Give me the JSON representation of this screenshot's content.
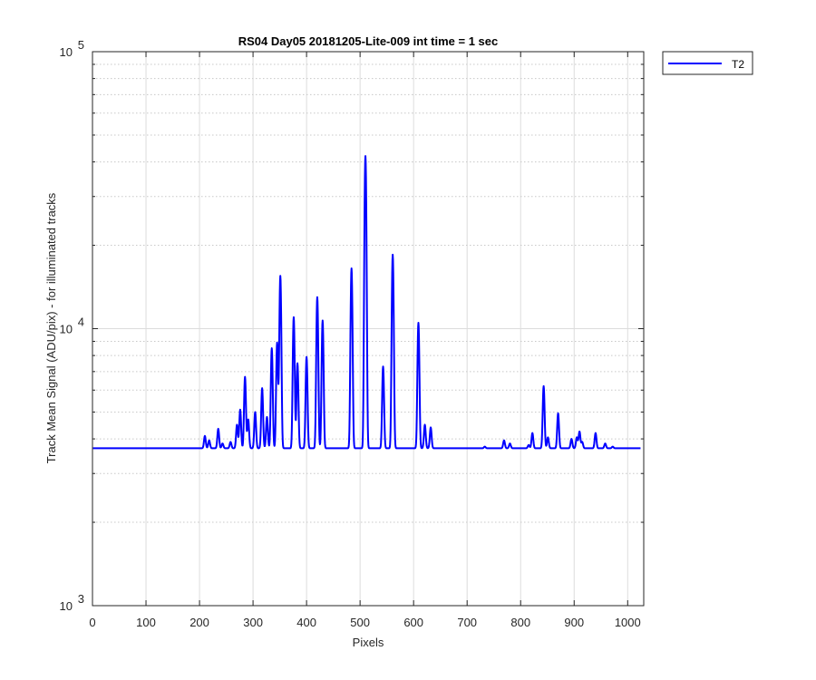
{
  "chart_data": {
    "type": "line",
    "title": "RS04 Day05 20181205-Lite-009 int time = 1 sec",
    "xlabel": "Pixels",
    "ylabel": "Track Mean Signal (ADU/pix) - for illuminated tracks",
    "xlim": [
      0,
      1030
    ],
    "ylim": [
      1000,
      100000
    ],
    "yscale": "log",
    "grid": "major-and-minor",
    "legend_position": "outside-top-right",
    "x_tick_labels": [
      "0",
      "100",
      "200",
      "300",
      "400",
      "500",
      "600",
      "700",
      "800",
      "900",
      "1000"
    ],
    "x_ticks": [
      0,
      100,
      200,
      300,
      400,
      500,
      600,
      700,
      800,
      900,
      1000
    ],
    "y_ticks": [
      1000,
      10000,
      100000
    ],
    "y_tick_labels": [
      {
        "base": "10",
        "exp": "3"
      },
      {
        "base": "10",
        "exp": "4"
      },
      {
        "base": "10",
        "exp": "5"
      }
    ],
    "series": [
      {
        "name": "T2",
        "color": "#0000ff",
        "baseline": 3700,
        "peaks": [
          {
            "x": 210,
            "y": 4100
          },
          {
            "x": 218,
            "y": 3950
          },
          {
            "x": 235,
            "y": 4350
          },
          {
            "x": 243,
            "y": 3850
          },
          {
            "x": 258,
            "y": 3900
          },
          {
            "x": 270,
            "y": 4500
          },
          {
            "x": 276,
            "y": 5100
          },
          {
            "x": 285,
            "y": 6700
          },
          {
            "x": 291,
            "y": 4700
          },
          {
            "x": 304,
            "y": 5000
          },
          {
            "x": 317,
            "y": 6100
          },
          {
            "x": 326,
            "y": 4800
          },
          {
            "x": 335,
            "y": 8500
          },
          {
            "x": 345,
            "y": 8900
          },
          {
            "x": 351,
            "y": 15500
          },
          {
            "x": 376,
            "y": 11000
          },
          {
            "x": 383,
            "y": 7500
          },
          {
            "x": 400,
            "y": 7900
          },
          {
            "x": 420,
            "y": 13000
          },
          {
            "x": 430,
            "y": 10700
          },
          {
            "x": 484,
            "y": 16500
          },
          {
            "x": 510,
            "y": 42000
          },
          {
            "x": 543,
            "y": 7300
          },
          {
            "x": 561,
            "y": 18500
          },
          {
            "x": 609,
            "y": 10500
          },
          {
            "x": 621,
            "y": 4500
          },
          {
            "x": 632,
            "y": 4400
          },
          {
            "x": 733,
            "y": 3750
          },
          {
            "x": 769,
            "y": 3950
          },
          {
            "x": 780,
            "y": 3850
          },
          {
            "x": 815,
            "y": 3800
          },
          {
            "x": 822,
            "y": 4200
          },
          {
            "x": 843,
            "y": 6200
          },
          {
            "x": 851,
            "y": 4050
          },
          {
            "x": 870,
            "y": 4950
          },
          {
            "x": 895,
            "y": 4000
          },
          {
            "x": 905,
            "y": 4050
          },
          {
            "x": 910,
            "y": 4250
          },
          {
            "x": 915,
            "y": 3900
          },
          {
            "x": 940,
            "y": 4200
          },
          {
            "x": 958,
            "y": 3850
          },
          {
            "x": 972,
            "y": 3750
          }
        ]
      }
    ]
  }
}
